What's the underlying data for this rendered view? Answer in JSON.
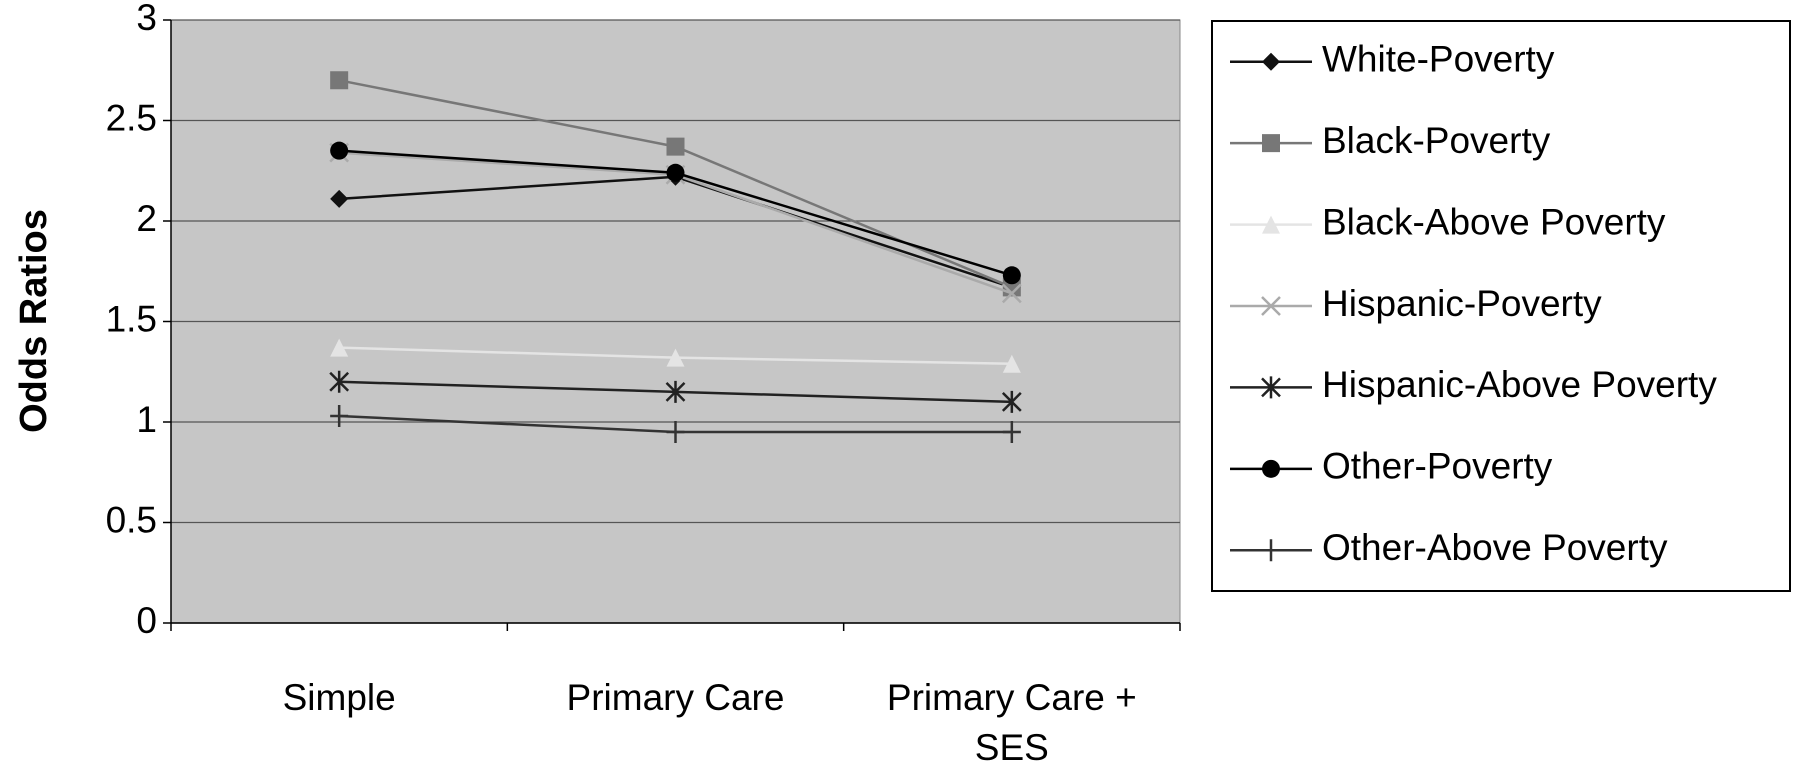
{
  "chart_data": {
    "type": "line",
    "y_label": "Odds Ratios",
    "categories": [
      "Simple",
      "Primary Care",
      "Primary Care + SES"
    ],
    "ylim": [
      0,
      3
    ],
    "yticks": [
      0,
      0.5,
      1,
      1.5,
      2,
      2.5,
      3
    ],
    "grid": true,
    "legend": "right",
    "series": [
      {
        "name": "White-Poverty",
        "color": "#111111",
        "marker": "diamond",
        "values": [
          2.11,
          2.22,
          1.67
        ]
      },
      {
        "name": "Black-Poverty",
        "color": "#777777",
        "marker": "square",
        "values": [
          2.7,
          2.37,
          1.67
        ]
      },
      {
        "name": "Black-Above Poverty",
        "color": "#e4e4e4",
        "marker": "triangle",
        "values": [
          1.37,
          1.32,
          1.29
        ]
      },
      {
        "name": "Hispanic-Poverty",
        "color": "#aaaaaa",
        "marker": "x",
        "values": [
          2.34,
          2.23,
          1.64
        ]
      },
      {
        "name": "Hispanic-Above Poverty",
        "color": "#222222",
        "marker": "asterisk",
        "values": [
          1.2,
          1.15,
          1.1
        ]
      },
      {
        "name": "Other-Poverty",
        "color": "#000000",
        "marker": "circle",
        "values": [
          2.35,
          2.24,
          1.73
        ]
      },
      {
        "name": "Other-Above Poverty",
        "color": "#333333",
        "marker": "plus",
        "values": [
          1.03,
          0.95,
          0.95
        ]
      }
    ]
  }
}
